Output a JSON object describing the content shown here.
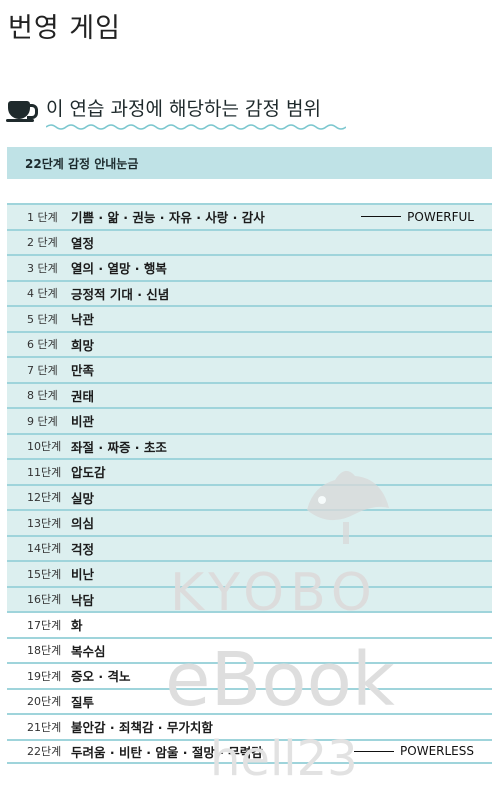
{
  "page_title": "번영 게임",
  "section_title": "이 연습 과정에 해당하는 감정 범위",
  "table": {
    "header": "22단계 감정 안내눈금",
    "rows": [
      {
        "stage": "1 단계",
        "emotion": "기쁨 · 앎 · 권능 · 자유 · 사랑 · 감사",
        "marker": "POWERFUL"
      },
      {
        "stage": "2 단계",
        "emotion": "열정"
      },
      {
        "stage": "3 단계",
        "emotion": "열의 · 열망 · 행복"
      },
      {
        "stage": "4 단계",
        "emotion": "긍정적 기대 · 신념"
      },
      {
        "stage": "5 단계",
        "emotion": "낙관"
      },
      {
        "stage": "6 단계",
        "emotion": "희망"
      },
      {
        "stage": "7 단계",
        "emotion": "만족"
      },
      {
        "stage": "8 단계",
        "emotion": "권태"
      },
      {
        "stage": "9 단계",
        "emotion": "비관"
      },
      {
        "stage": "10단계",
        "emotion": "좌절 · 짜증 · 초조"
      },
      {
        "stage": "11단계",
        "emotion": "압도감"
      },
      {
        "stage": "12단계",
        "emotion": "실망"
      },
      {
        "stage": "13단계",
        "emotion": "의심"
      },
      {
        "stage": "14단계",
        "emotion": "걱정"
      },
      {
        "stage": "15단계",
        "emotion": "비난"
      },
      {
        "stage": "16단계",
        "emotion": "낙담"
      },
      {
        "stage": "17단계",
        "emotion": "화"
      },
      {
        "stage": "18단계",
        "emotion": "복수심"
      },
      {
        "stage": "19단계",
        "emotion": "증오 · 격노"
      },
      {
        "stage": "20단계",
        "emotion": "질투"
      },
      {
        "stage": "21단계",
        "emotion": "불안감 · 죄책감 · 무가치함"
      },
      {
        "stage": "22단계",
        "emotion": "두려움 · 비탄 · 암울 · 절망 · 무력감",
        "marker": "POWERLESS"
      }
    ]
  },
  "watermark": {
    "line1": "KYOBO",
    "line2": "eBook",
    "line3": "hell23"
  },
  "colors": {
    "header_bg": "#bfe2e6",
    "row_shade": "#dcefef",
    "rule": "#9fd4db",
    "watermark": "#d7d7d7"
  }
}
